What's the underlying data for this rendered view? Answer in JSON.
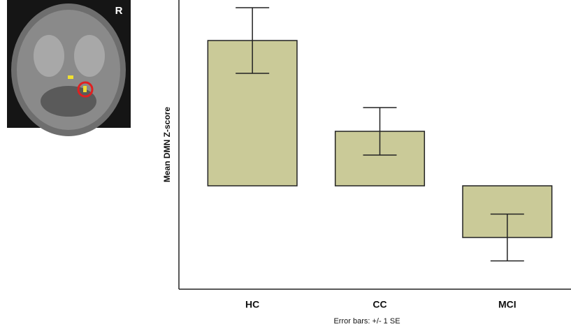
{
  "chart_data": {
    "type": "bar",
    "ylabel": "Mean DMN Z-score",
    "note": "Error bars: +/- 1 SE",
    "categories": [
      "HC",
      "CC",
      "MCI"
    ],
    "values": [
      2.08,
      0.78,
      -0.74
    ],
    "errors": [
      0.47,
      0.34,
      0.335
    ],
    "color": "#caca98",
    "ylim": [
      -1.48,
      2.66
    ]
  },
  "inset": {
    "label": "R"
  }
}
